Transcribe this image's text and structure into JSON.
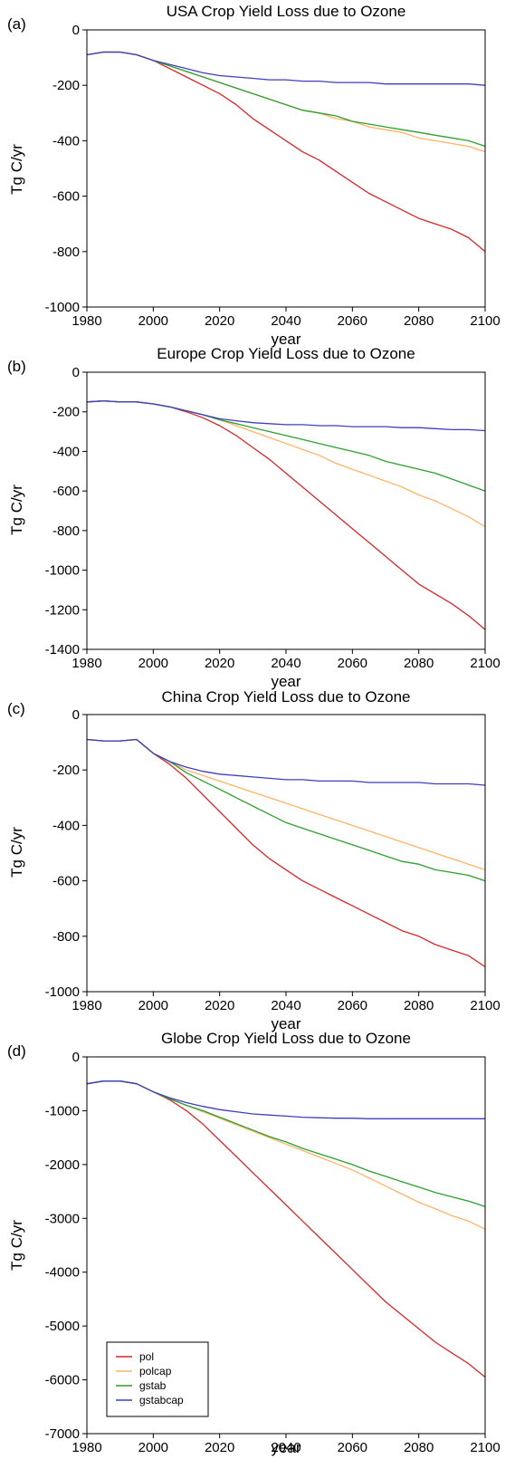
{
  "figure": {
    "series_colors": {
      "pol": "#d62728",
      "polcap": "#ffb366",
      "gstab": "#2ca02c",
      "gstabcap": "#3f3fbf"
    },
    "legend": {
      "entries": [
        "pol",
        "polcap",
        "gstab",
        "gstabcap"
      ],
      "panel": "d",
      "placement": "lower-left"
    }
  },
  "chart_data": [
    {
      "type": "line",
      "panel_label": "(a)",
      "title": "USA Crop Yield Loss due to Ozone",
      "xlabel": "year",
      "ylabel": "Tg C/yr",
      "xlim": [
        1980,
        2100
      ],
      "ylim": [
        -1000,
        0
      ],
      "xticks": [
        1980,
        2000,
        2020,
        2040,
        2060,
        2080,
        2100
      ],
      "yticks": [
        0,
        -200,
        -400,
        -600,
        -800,
        -1000
      ],
      "x": [
        1980,
        1985,
        1990,
        1995,
        2000,
        2005,
        2010,
        2015,
        2020,
        2025,
        2030,
        2035,
        2040,
        2045,
        2050,
        2055,
        2060,
        2065,
        2070,
        2075,
        2080,
        2085,
        2090,
        2095,
        2100
      ],
      "series": [
        {
          "key": "pol",
          "name": "pol",
          "values": [
            -90,
            -80,
            -80,
            -90,
            -110,
            -140,
            -170,
            -200,
            -230,
            -270,
            -320,
            -360,
            -400,
            -440,
            -470,
            -510,
            -550,
            -590,
            -620,
            -650,
            -680,
            -700,
            -720,
            -750,
            -800
          ]
        },
        {
          "key": "polcap",
          "name": "polcap",
          "values": [
            -90,
            -80,
            -80,
            -90,
            -110,
            -130,
            -150,
            -170,
            -190,
            -210,
            -230,
            -250,
            -270,
            -290,
            -300,
            -320,
            -330,
            -350,
            -360,
            -370,
            -390,
            -400,
            -410,
            -420,
            -440
          ]
        },
        {
          "key": "gstab",
          "name": "gstab",
          "values": [
            -90,
            -80,
            -80,
            -90,
            -110,
            -130,
            -150,
            -170,
            -190,
            -210,
            -230,
            -250,
            -270,
            -290,
            -300,
            -310,
            -330,
            -340,
            -350,
            -360,
            -370,
            -380,
            -390,
            -400,
            -420
          ]
        },
        {
          "key": "gstabcap",
          "name": "gstabcap",
          "values": [
            -90,
            -80,
            -80,
            -90,
            -110,
            -125,
            -140,
            -155,
            -165,
            -170,
            -175,
            -180,
            -180,
            -185,
            -185,
            -190,
            -190,
            -190,
            -195,
            -195,
            -195,
            -195,
            -195,
            -195,
            -200
          ]
        }
      ]
    },
    {
      "type": "line",
      "panel_label": "(b)",
      "title": "Europe Crop Yield Loss due to Ozone",
      "xlabel": "year",
      "ylabel": "Tg C/yr",
      "xlim": [
        1980,
        2100
      ],
      "ylim": [
        -1400,
        0
      ],
      "xticks": [
        1980,
        2000,
        2020,
        2040,
        2060,
        2080,
        2100
      ],
      "yticks": [
        0,
        -200,
        -400,
        -600,
        -800,
        -1000,
        -1200,
        -1400
      ],
      "x": [
        1980,
        1985,
        1990,
        1995,
        2000,
        2005,
        2010,
        2015,
        2020,
        2025,
        2030,
        2035,
        2040,
        2045,
        2050,
        2055,
        2060,
        2065,
        2070,
        2075,
        2080,
        2085,
        2090,
        2095,
        2100
      ],
      "series": [
        {
          "key": "pol",
          "name": "pol",
          "values": [
            -150,
            -145,
            -150,
            -150,
            -160,
            -175,
            -200,
            -230,
            -270,
            -320,
            -380,
            -440,
            -510,
            -580,
            -650,
            -720,
            -790,
            -860,
            -930,
            -1000,
            -1070,
            -1120,
            -1170,
            -1230,
            -1300
          ]
        },
        {
          "key": "polcap",
          "name": "polcap",
          "values": [
            -150,
            -145,
            -150,
            -150,
            -160,
            -175,
            -195,
            -215,
            -240,
            -270,
            -300,
            -330,
            -360,
            -390,
            -420,
            -460,
            -490,
            -520,
            -550,
            -580,
            -620,
            -650,
            -690,
            -730,
            -780
          ]
        },
        {
          "key": "gstab",
          "name": "gstab",
          "values": [
            -150,
            -145,
            -150,
            -150,
            -160,
            -175,
            -195,
            -215,
            -240,
            -260,
            -280,
            -300,
            -320,
            -340,
            -360,
            -380,
            -400,
            -420,
            -450,
            -470,
            -490,
            -510,
            -540,
            -570,
            -600
          ]
        },
        {
          "key": "gstabcap",
          "name": "gstabcap",
          "values": [
            -150,
            -145,
            -150,
            -150,
            -160,
            -175,
            -195,
            -215,
            -235,
            -245,
            -255,
            -260,
            -265,
            -265,
            -270,
            -270,
            -275,
            -275,
            -275,
            -280,
            -280,
            -285,
            -290,
            -290,
            -295
          ]
        }
      ]
    },
    {
      "type": "line",
      "panel_label": "(c)",
      "title": "China Crop Yield Loss due to Ozone",
      "xlabel": "year",
      "ylabel": "Tg C/yr",
      "xlim": [
        1980,
        2100
      ],
      "ylim": [
        -1000,
        0
      ],
      "xticks": [
        1980,
        2000,
        2020,
        2040,
        2060,
        2080,
        2100
      ],
      "yticks": [
        0,
        -200,
        -400,
        -600,
        -800,
        -1000
      ],
      "x": [
        1980,
        1985,
        1990,
        1995,
        2000,
        2005,
        2010,
        2015,
        2020,
        2025,
        2030,
        2035,
        2040,
        2045,
        2050,
        2055,
        2060,
        2065,
        2070,
        2075,
        2080,
        2085,
        2090,
        2095,
        2100
      ],
      "series": [
        {
          "key": "pol",
          "name": "pol",
          "values": [
            -90,
            -95,
            -95,
            -90,
            -140,
            -180,
            -230,
            -290,
            -350,
            -410,
            -470,
            -520,
            -560,
            -600,
            -630,
            -660,
            -690,
            -720,
            -750,
            -780,
            -800,
            -830,
            -850,
            -870,
            -910
          ]
        },
        {
          "key": "polcap",
          "name": "polcap",
          "values": [
            -90,
            -95,
            -95,
            -90,
            -140,
            -170,
            -200,
            -220,
            -240,
            -260,
            -280,
            -300,
            -320,
            -340,
            -360,
            -380,
            -400,
            -420,
            -440,
            -460,
            -480,
            -500,
            -520,
            -540,
            -560
          ]
        },
        {
          "key": "gstab",
          "name": "gstab",
          "values": [
            -90,
            -95,
            -95,
            -90,
            -140,
            -170,
            -210,
            -240,
            -270,
            -300,
            -330,
            -360,
            -390,
            -410,
            -430,
            -450,
            -470,
            -490,
            -510,
            -530,
            -540,
            -560,
            -570,
            -580,
            -600
          ]
        },
        {
          "key": "gstabcap",
          "name": "gstabcap",
          "values": [
            -90,
            -95,
            -95,
            -90,
            -140,
            -170,
            -190,
            -205,
            -215,
            -220,
            -225,
            -230,
            -235,
            -235,
            -240,
            -240,
            -240,
            -245,
            -245,
            -245,
            -245,
            -250,
            -250,
            -250,
            -255
          ]
        }
      ]
    },
    {
      "type": "line",
      "panel_label": "(d)",
      "title": "Globe Crop Yield Loss due to Ozone",
      "xlabel": "year",
      "ylabel": "Tg C/yr",
      "xlim": [
        1980,
        2100
      ],
      "ylim": [
        -7000,
        0
      ],
      "xticks": [
        1980,
        2000,
        2020,
        2040,
        2060,
        2080,
        2100
      ],
      "yticks": [
        0,
        -1000,
        -2000,
        -3000,
        -4000,
        -5000,
        -6000,
        -7000
      ],
      "x": [
        1980,
        1985,
        1990,
        1995,
        2000,
        2005,
        2010,
        2015,
        2020,
        2025,
        2030,
        2035,
        2040,
        2045,
        2050,
        2055,
        2060,
        2065,
        2070,
        2075,
        2080,
        2085,
        2090,
        2095,
        2100
      ],
      "series": [
        {
          "key": "pol",
          "name": "pol",
          "values": [
            -500,
            -450,
            -450,
            -500,
            -650,
            -800,
            -1000,
            -1250,
            -1550,
            -1850,
            -2150,
            -2450,
            -2750,
            -3050,
            -3350,
            -3650,
            -3950,
            -4250,
            -4550,
            -4800,
            -5050,
            -5300,
            -5500,
            -5700,
            -5950
          ]
        },
        {
          "key": "polcap",
          "name": "polcap",
          "values": [
            -500,
            -450,
            -450,
            -500,
            -650,
            -780,
            -900,
            -1020,
            -1140,
            -1260,
            -1380,
            -1500,
            -1620,
            -1740,
            -1860,
            -1980,
            -2100,
            -2250,
            -2400,
            -2550,
            -2700,
            -2820,
            -2950,
            -3050,
            -3200
          ]
        },
        {
          "key": "gstab",
          "name": "gstab",
          "values": [
            -500,
            -450,
            -450,
            -500,
            -650,
            -780,
            -900,
            -1000,
            -1120,
            -1240,
            -1360,
            -1480,
            -1580,
            -1700,
            -1800,
            -1900,
            -2000,
            -2120,
            -2220,
            -2320,
            -2420,
            -2520,
            -2600,
            -2680,
            -2780
          ]
        },
        {
          "key": "gstabcap",
          "name": "gstabcap",
          "values": [
            -500,
            -450,
            -450,
            -500,
            -650,
            -760,
            -850,
            -920,
            -980,
            -1020,
            -1060,
            -1080,
            -1100,
            -1120,
            -1130,
            -1140,
            -1140,
            -1150,
            -1150,
            -1150,
            -1150,
            -1150,
            -1150,
            -1150,
            -1150
          ]
        }
      ]
    }
  ]
}
